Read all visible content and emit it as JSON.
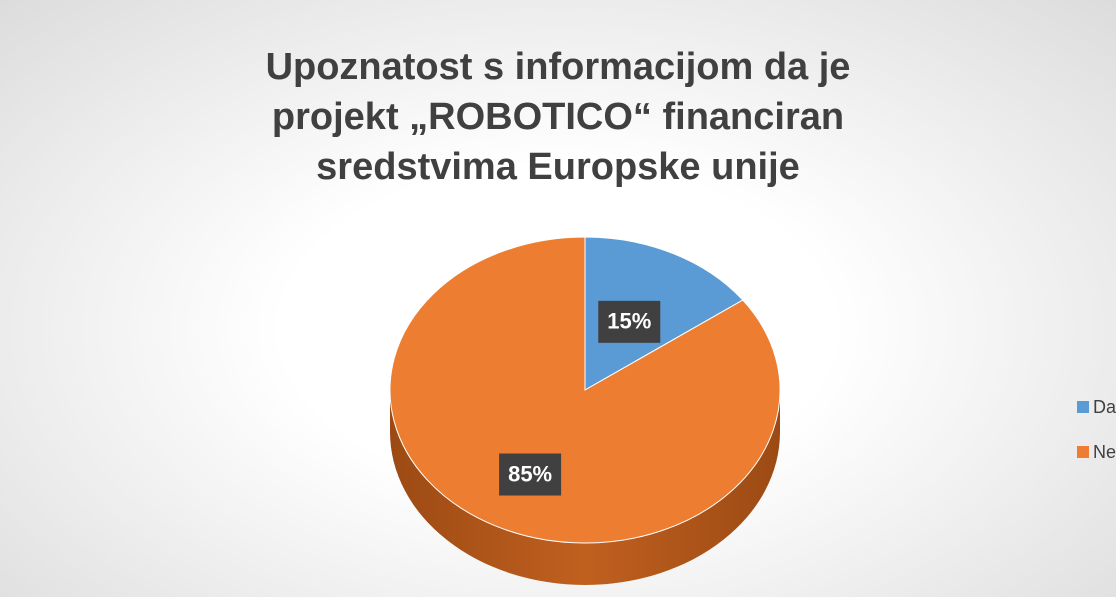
{
  "chart_data": {
    "type": "pie",
    "title": "Upoznatost s informacijom da je projekt „ROBOTICO“ financiran sredstvima Europske unije",
    "categories": [
      "Da",
      "Ne"
    ],
    "values": [
      15,
      85
    ],
    "value_labels": [
      "15%",
      "85%"
    ],
    "colors": [
      "#5b9bd5",
      "#ed7d31"
    ],
    "legend": "right"
  }
}
